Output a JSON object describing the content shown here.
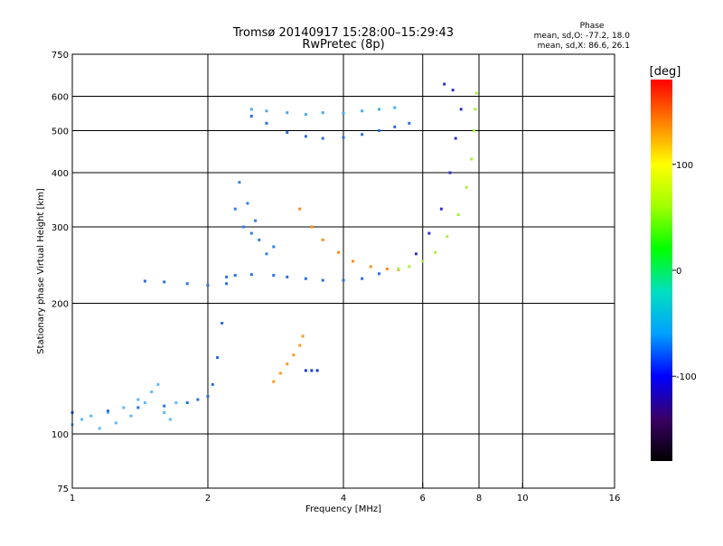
{
  "chart_data": {
    "type": "scatter",
    "title": "Tromsø 20140917 15:28:00–15:29:43",
    "subtitle": "RwPretec (8p)",
    "xlabel": "Frequency [MHz]",
    "ylabel": "Stationary phase Virtual Height [km]",
    "x_scale": "log2",
    "y_scale": "log",
    "xlim": [
      1,
      16
    ],
    "ylim": [
      75,
      750
    ],
    "x_ticks": [
      1,
      2,
      4,
      6,
      8,
      10,
      16
    ],
    "y_ticks": [
      75,
      100,
      200,
      300,
      400,
      500,
      600,
      750
    ],
    "x_gridlines": [
      2,
      4,
      6,
      8,
      10
    ],
    "y_gridlines": [
      100,
      200,
      300,
      400,
      500,
      600
    ],
    "grid": true,
    "phase_stats": {
      "header": "Phase",
      "o_line": "mean, sd,O: -77.2, 18.0",
      "x_line": "mean, sd,X:  86.6, 26.1"
    },
    "colorbar": {
      "label": "[deg]",
      "range": [
        -180,
        180
      ],
      "ticks": [
        100,
        0,
        -100
      ],
      "colors": [
        "#000000",
        "#3a0066",
        "#0000ff",
        "#00a0ff",
        "#00e0c0",
        "#00ff00",
        "#a0ff00",
        "#ffff00",
        "#ff8000",
        "#ff0000"
      ]
    },
    "series": [
      {
        "name": "",
        "color": "#5fb8ff",
        "points": [
          [
            1.0,
            105
          ],
          [
            1.05,
            108
          ],
          [
            1.1,
            110
          ],
          [
            1.15,
            103
          ],
          [
            1.2,
            112
          ],
          [
            1.25,
            106
          ],
          [
            1.3,
            115
          ],
          [
            1.35,
            110
          ],
          [
            1.4,
            120
          ],
          [
            1.45,
            118
          ],
          [
            1.5,
            125
          ],
          [
            1.55,
            130
          ],
          [
            1.6,
            112
          ],
          [
            1.65,
            108
          ],
          [
            1.7,
            118
          ]
        ]
      },
      {
        "name": "",
        "color": "#2a6fe0",
        "points": [
          [
            1.0,
            112
          ],
          [
            1.2,
            113
          ],
          [
            1.4,
            115
          ],
          [
            1.6,
            116
          ],
          [
            1.8,
            118
          ],
          [
            1.9,
            120
          ],
          [
            2.0,
            122
          ],
          [
            2.05,
            130
          ],
          [
            2.1,
            150
          ],
          [
            2.15,
            180
          ],
          [
            2.2,
            230
          ]
        ]
      },
      {
        "name": "",
        "color": "#2a6fe0",
        "points": [
          [
            1.45,
            225
          ],
          [
            1.6,
            224
          ],
          [
            1.8,
            222
          ],
          [
            2.0,
            220
          ],
          [
            2.2,
            222
          ],
          [
            2.3,
            232
          ],
          [
            2.5,
            233
          ],
          [
            2.8,
            232
          ],
          [
            3.0,
            230
          ],
          [
            3.3,
            228
          ],
          [
            3.6,
            226
          ],
          [
            4.0,
            226
          ],
          [
            4.4,
            228
          ],
          [
            4.8,
            234
          ]
        ]
      },
      {
        "name": "",
        "color": "#2f80e8",
        "points": [
          [
            2.3,
            330
          ],
          [
            2.35,
            380
          ],
          [
            2.4,
            300
          ],
          [
            2.45,
            340
          ],
          [
            2.5,
            290
          ],
          [
            2.55,
            310
          ],
          [
            2.6,
            280
          ],
          [
            2.7,
            260
          ],
          [
            2.8,
            270
          ]
        ]
      },
      {
        "name": "",
        "color": "#ff8c1a",
        "points": [
          [
            3.2,
            330
          ],
          [
            3.4,
            300
          ],
          [
            3.6,
            280
          ],
          [
            3.9,
            262
          ],
          [
            4.2,
            250
          ],
          [
            4.6,
            243
          ],
          [
            5.0,
            240
          ],
          [
            5.3,
            239
          ]
        ]
      },
      {
        "name": "",
        "color": "#a8f040",
        "points": [
          [
            5.3,
            240
          ],
          [
            5.6,
            243
          ],
          [
            6.0,
            250
          ],
          [
            6.4,
            262
          ],
          [
            6.8,
            285
          ],
          [
            7.2,
            320
          ],
          [
            7.5,
            370
          ],
          [
            7.7,
            430
          ],
          [
            7.8,
            500
          ],
          [
            7.85,
            560
          ],
          [
            7.9,
            610
          ]
        ]
      },
      {
        "name": "",
        "color": "#3030d0",
        "points": [
          [
            5.8,
            260
          ],
          [
            6.2,
            290
          ],
          [
            6.6,
            330
          ],
          [
            6.9,
            400
          ],
          [
            7.1,
            480
          ],
          [
            7.3,
            560
          ],
          [
            7.0,
            620
          ],
          [
            6.7,
            640
          ]
        ]
      },
      {
        "name": "",
        "color": "#2a6fe0",
        "points": [
          [
            2.5,
            540
          ],
          [
            2.7,
            520
          ],
          [
            3.0,
            495
          ],
          [
            3.3,
            485
          ],
          [
            3.6,
            480
          ],
          [
            4.0,
            482
          ],
          [
            4.4,
            490
          ],
          [
            4.8,
            500
          ],
          [
            5.2,
            510
          ],
          [
            5.6,
            520
          ]
        ]
      },
      {
        "name": "",
        "color": "#4aaaf0",
        "points": [
          [
            2.5,
            560
          ],
          [
            2.7,
            555
          ],
          [
            3.0,
            550
          ],
          [
            3.3,
            545
          ],
          [
            3.6,
            550
          ],
          [
            4.0,
            548
          ],
          [
            4.4,
            555
          ],
          [
            4.8,
            560
          ],
          [
            5.2,
            565
          ]
        ]
      },
      {
        "name": "",
        "color": "#ff9a20",
        "points": [
          [
            2.8,
            132
          ],
          [
            2.9,
            138
          ],
          [
            3.0,
            145
          ],
          [
            3.1,
            152
          ],
          [
            3.2,
            160
          ],
          [
            3.25,
            168
          ]
        ]
      },
      {
        "name": "",
        "color": "#1a3ad0",
        "points": [
          [
            3.3,
            140
          ],
          [
            3.4,
            140
          ],
          [
            3.5,
            140
          ]
        ]
      }
    ]
  }
}
